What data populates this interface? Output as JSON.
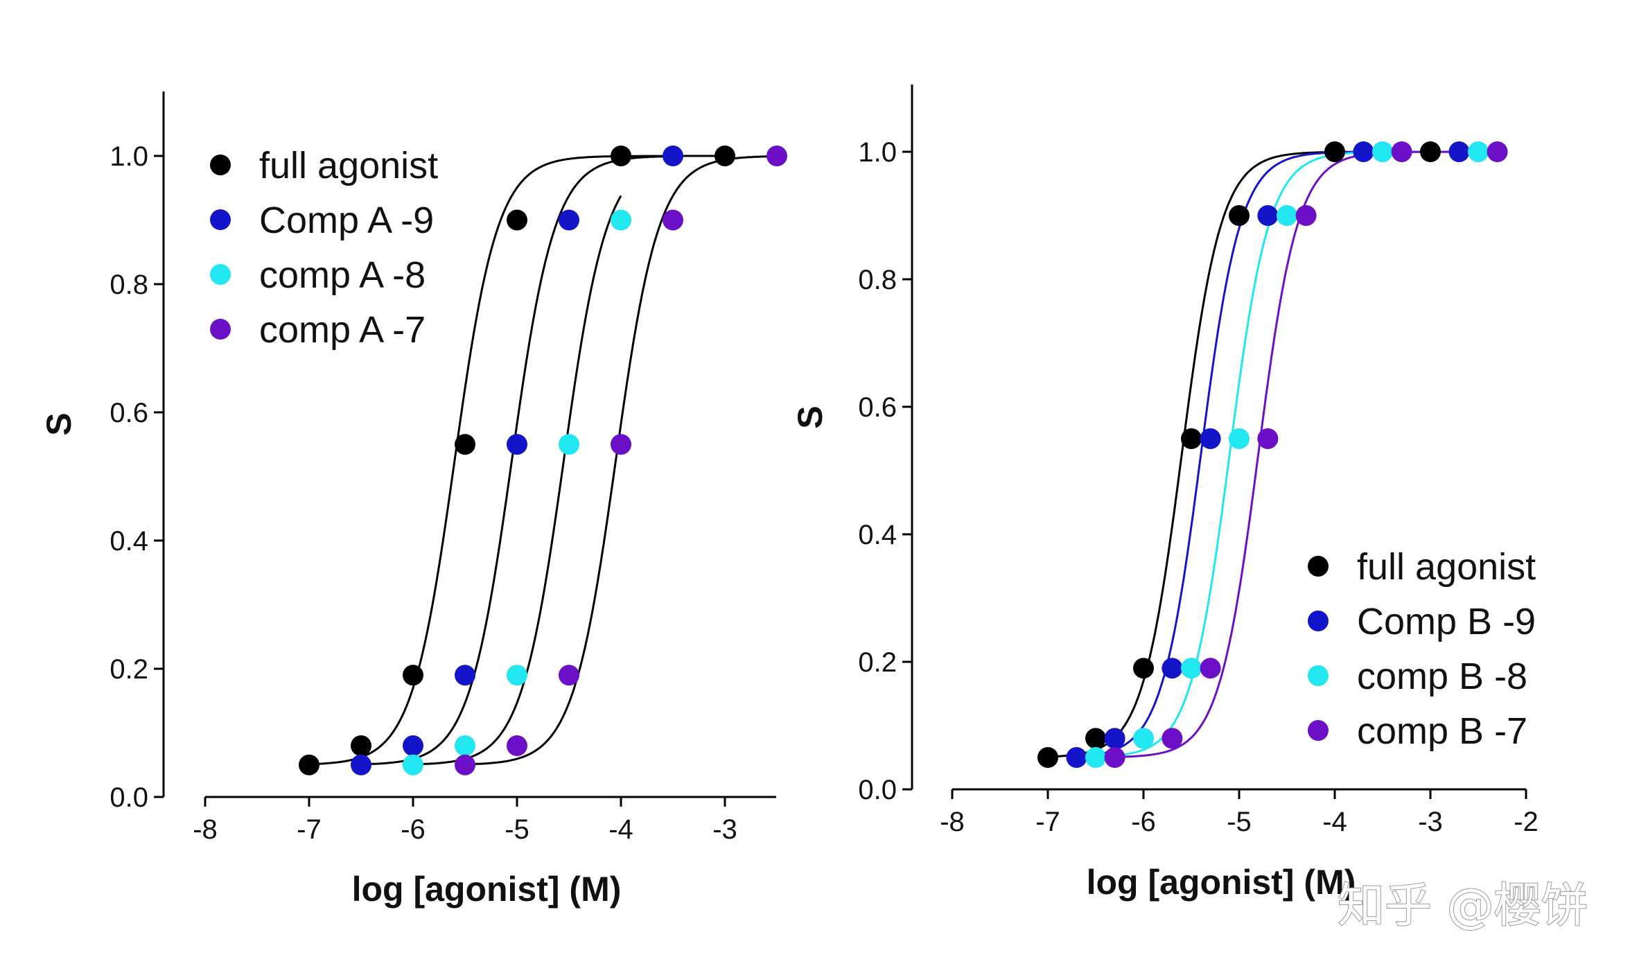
{
  "chart_data": [
    {
      "type": "line",
      "xlabel": "log [agonist] (M)",
      "ylabel": "S",
      "xlim": [
        -8,
        -2.5
      ],
      "ylim": [
        0,
        1.1
      ],
      "xticks": [
        "-8",
        "-7",
        "-6",
        "-5",
        "-4",
        "-3"
      ],
      "yticks": [
        "0.0",
        "0.2",
        "0.4",
        "0.6",
        "0.8",
        "1.0"
      ],
      "legend_position": "top-left",
      "series": [
        {
          "name": "full  agonist",
          "color": "#000000",
          "ec50": -5.6,
          "x": [
            -7,
            -6.5,
            -6,
            -5.5,
            -5,
            -4,
            -3
          ],
          "y": [
            0.05,
            0.08,
            0.19,
            0.55,
            0.9,
            1.0,
            1.0
          ]
        },
        {
          "name": "Comp A -9",
          "color": "#1414c8",
          "ec50": -5.05,
          "x": [
            -6.5,
            -6,
            -5.5,
            -5,
            -4.5,
            -3.5
          ],
          "y": [
            0.05,
            0.08,
            0.19,
            0.55,
            0.9,
            1.0
          ]
        },
        {
          "name": "comp A -8",
          "color": "#22e6f0",
          "ec50": -4.55,
          "x": [
            -6,
            -5.5,
            -5,
            -4.5,
            -4
          ],
          "y": [
            0.05,
            0.08,
            0.19,
            0.55,
            0.9
          ]
        },
        {
          "name": "comp A -7",
          "color": "#6c10c8",
          "ec50": -4.05,
          "x": [
            -5.5,
            -5,
            -4.5,
            -4,
            -3.5,
            -2.5
          ],
          "y": [
            0.05,
            0.08,
            0.19,
            0.55,
            0.9,
            1.0
          ]
        }
      ]
    },
    {
      "type": "line",
      "xlabel": "log [agonist] (M)",
      "ylabel": "S",
      "xlim": [
        -8,
        -2
      ],
      "ylim": [
        0,
        1.1
      ],
      "xticks": [
        "-8",
        "-7",
        "-6",
        "-5",
        "-4",
        "-3",
        "-2"
      ],
      "yticks": [
        "0.0",
        "0.2",
        "0.4",
        "0.6",
        "0.8",
        "1.0"
      ],
      "legend_position": "bottom-right",
      "series": [
        {
          "name": "full agonist",
          "color": "#000000",
          "ec50": -5.6,
          "x": [
            -7,
            -6.5,
            -6,
            -5.5,
            -5,
            -4,
            -3
          ],
          "y": [
            0.05,
            0.08,
            0.19,
            0.55,
            0.9,
            1.0,
            1.0
          ]
        },
        {
          "name": "Comp B -9",
          "color": "#1414c8",
          "ec50": -5.4,
          "x": [
            -6.7,
            -6.3,
            -5.7,
            -5.3,
            -4.7,
            -3.7,
            -2.7
          ],
          "y": [
            0.05,
            0.08,
            0.19,
            0.55,
            0.9,
            1.0,
            1.0
          ]
        },
        {
          "name": "comp B -8",
          "color": "#22e6f0",
          "ec50": -5.1,
          "x": [
            -6.5,
            -6,
            -5.5,
            -5,
            -4.5,
            -3.5,
            -2.5
          ],
          "y": [
            0.05,
            0.08,
            0.19,
            0.55,
            0.9,
            1.0,
            1.0
          ]
        },
        {
          "name": "comp B -7",
          "color": "#6c10c8",
          "ec50": -4.8,
          "x": [
            -6.3,
            -5.7,
            -5.3,
            -4.7,
            -4.3,
            -3.3,
            -2.3
          ],
          "y": [
            0.05,
            0.08,
            0.19,
            0.55,
            0.9,
            1.0,
            1.0
          ]
        }
      ]
    }
  ],
  "watermark": "知乎 @樱饼"
}
